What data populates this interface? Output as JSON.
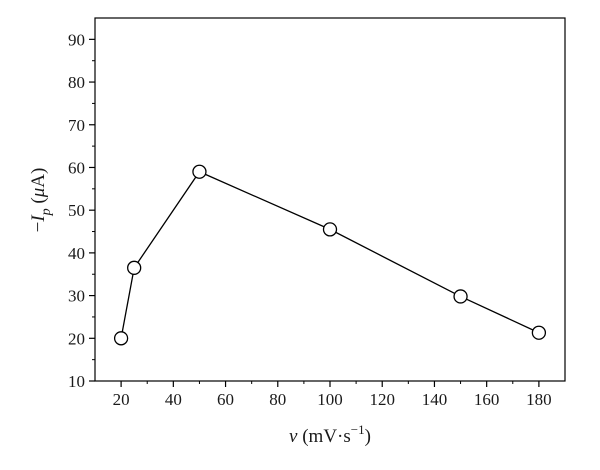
{
  "chart_data": {
    "type": "line",
    "x": [
      20,
      25,
      50,
      100,
      150,
      180
    ],
    "y": [
      20,
      36.5,
      59,
      45.5,
      29.8,
      21.3
    ],
    "xlim": [
      10,
      190
    ],
    "ylim": [
      10,
      95
    ],
    "x_ticks": [
      20,
      40,
      60,
      80,
      100,
      120,
      140,
      160,
      180
    ],
    "y_ticks": [
      10,
      20,
      30,
      40,
      50,
      60,
      70,
      80,
      90
    ],
    "x_tick_labels": [
      "20",
      "40",
      "60",
      "80",
      "100",
      "120",
      "140",
      "160",
      "180"
    ],
    "y_tick_labels": [
      "10",
      "20",
      "30",
      "40",
      "50",
      "60",
      "70",
      "80",
      "90"
    ],
    "xlabel": {
      "symbol": "v",
      "unit": " (mV·s",
      "exponent": "−1",
      "close": ")"
    },
    "ylabel": {
      "prefix": "−",
      "symbol": "I",
      "subscript": "p",
      "open": " (",
      "unit_symbol": "μ",
      "unit": "A)"
    },
    "grid": false,
    "legend": "none",
    "marker": "open-circle",
    "line_color": "#000000",
    "marker_fill": "#ffffff"
  }
}
